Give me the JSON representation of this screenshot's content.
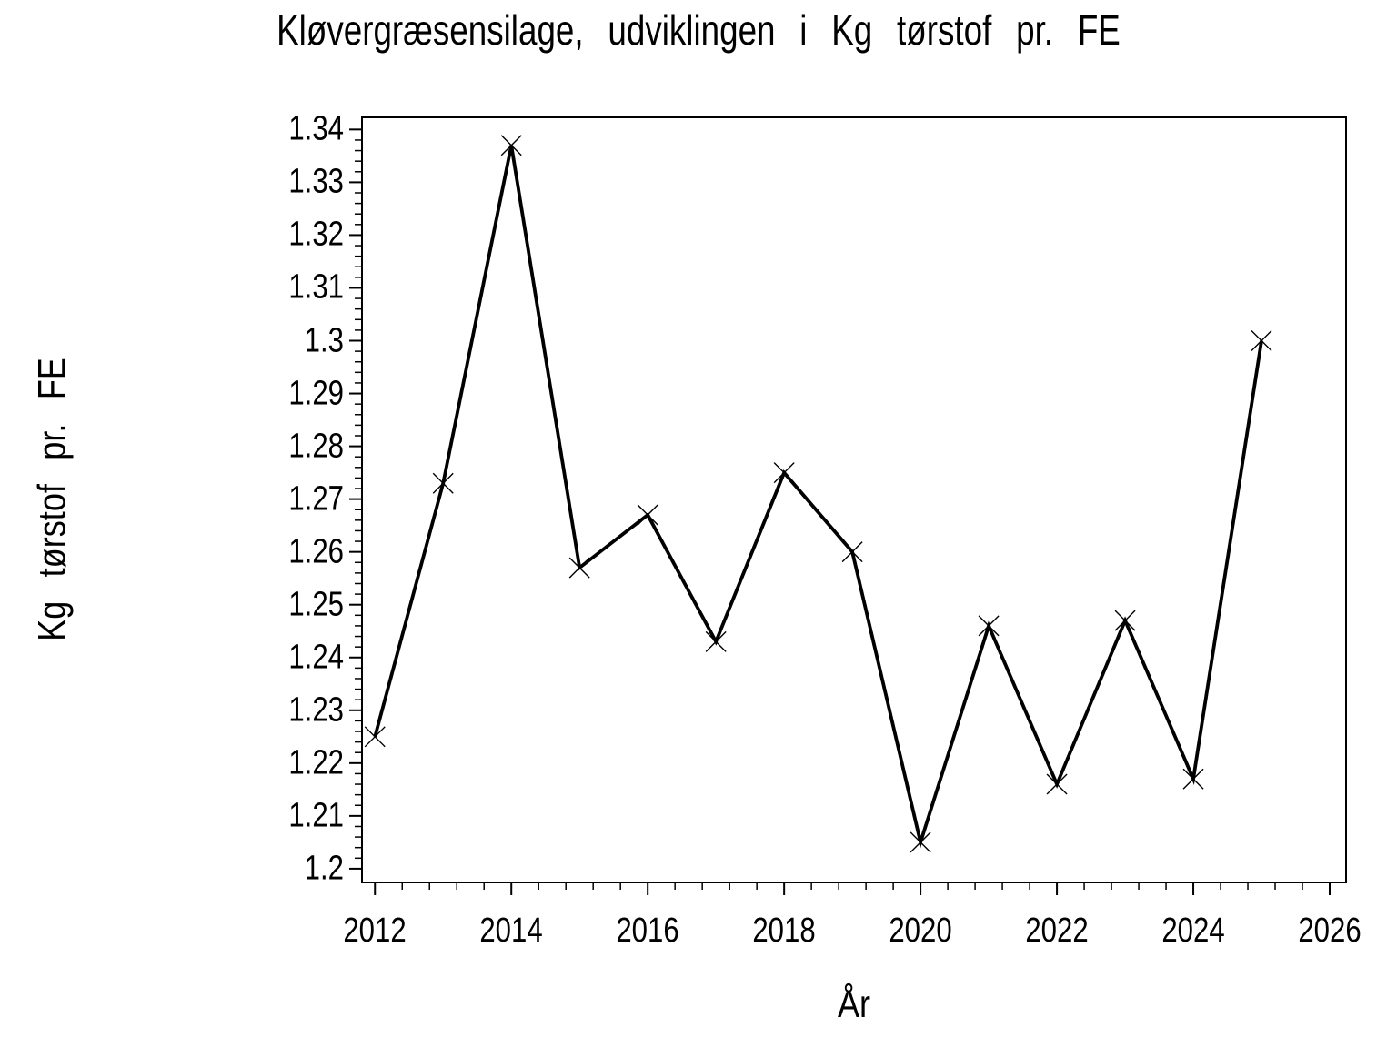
{
  "page": {
    "background_color": "#ffffff",
    "foreground_color": "#000000"
  },
  "chart_data": {
    "type": "line",
    "title": "Kløvergræsensilage, udviklingen i Kg tørstof pr. FE",
    "xlabel": "År",
    "ylabel": "Kg tørstof pr. FE",
    "grid": false,
    "legend": "none",
    "line_color": "#000000",
    "marker": "x-cross",
    "xlim": [
      2011.81,
      2026.24
    ],
    "ylim": [
      1.1974,
      1.3423
    ],
    "x_major_ticks": [
      2012,
      2014,
      2016,
      2018,
      2020,
      2022,
      2024,
      2026
    ],
    "x_tick_labels": [
      "2012",
      "2014",
      "2016",
      "2018",
      "2020",
      "2022",
      "2024",
      "2026"
    ],
    "y_major_ticks": [
      1.2,
      1.21,
      1.22,
      1.23,
      1.24,
      1.25,
      1.26,
      1.27,
      1.28,
      1.29,
      1.3,
      1.31,
      1.32,
      1.33,
      1.34
    ],
    "y_tick_labels": [
      "1.2",
      "1.21",
      "1.22",
      "1.23",
      "1.24",
      "1.25",
      "1.26",
      "1.27",
      "1.28",
      "1.29",
      "1.3",
      "1.31",
      "1.32",
      "1.33",
      "1.34"
    ],
    "minor_ticks_between_majors": 4,
    "series": [
      {
        "name": "Kg tørstof pr. FE",
        "x": [
          2012,
          2013,
          2014,
          2015,
          2016,
          2017,
          2018,
          2019,
          2020,
          2021,
          2022,
          2023,
          2024,
          2025
        ],
        "y": [
          1.225,
          1.273,
          1.337,
          1.257,
          1.267,
          1.243,
          1.275,
          1.26,
          1.205,
          1.246,
          1.216,
          1.247,
          1.217,
          1.3
        ]
      }
    ]
  }
}
